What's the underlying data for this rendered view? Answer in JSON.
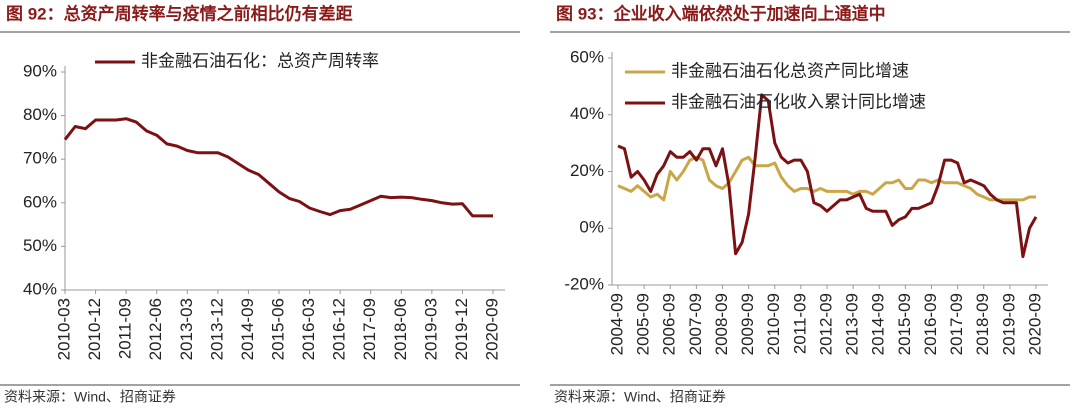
{
  "chart_data": [
    {
      "type": "line",
      "title": "图 92：总资产周转率与疫情之前相比仍有差距",
      "source": "资料来源：Wind、招商证券",
      "categories": [
        "2010-03",
        null,
        null,
        "2010-12",
        null,
        null,
        "2011-09",
        null,
        null,
        "2012-06",
        null,
        null,
        "2013-03",
        null,
        null,
        "2013-12",
        null,
        null,
        "2014-09",
        null,
        null,
        "2015-06",
        null,
        null,
        "2016-03",
        null,
        null,
        "2016-12",
        null,
        null,
        "2017-09",
        null,
        null,
        "2018-06",
        null,
        null,
        "2019-03",
        null,
        null,
        "2019-12",
        null,
        null,
        "2020-09"
      ],
      "series": [
        {
          "name": "非金融石油石化：总资产周转率",
          "color": "#7b1113",
          "values": [
            74.5,
            77.5,
            77,
            79,
            79,
            79,
            79.3,
            78.5,
            76.5,
            75.5,
            73.5,
            73,
            72,
            71.5,
            71.5,
            71.5,
            70.5,
            69,
            67.5,
            66.5,
            64.5,
            62.5,
            61,
            60.3,
            58.8,
            58,
            57.3,
            58.2,
            58.5,
            59.5,
            60.5,
            61.5,
            61.2,
            61.3,
            61.2,
            60.8,
            60.5,
            60,
            59.7,
            59.8,
            57,
            57,
            57
          ]
        }
      ],
      "ylim": [
        40,
        90
      ],
      "yticks": [
        {
          "value": 40,
          "label": "40%"
        },
        {
          "value": 50,
          "label": "50%"
        },
        {
          "value": 60,
          "label": "60%"
        },
        {
          "value": 70,
          "label": "70%"
        },
        {
          "value": 80,
          "label": "80%"
        },
        {
          "value": 90,
          "label": "90%"
        }
      ],
      "legend": "upper left"
    },
    {
      "type": "line",
      "title": "图 93：企业收入端依然处于加速向上通道中",
      "source": "资料来源：Wind、招商证券",
      "categories": [
        "2004-09",
        null,
        null,
        null,
        "2005-09",
        null,
        null,
        null,
        "2006-09",
        null,
        null,
        null,
        "2007-09",
        null,
        null,
        null,
        "2008-09",
        null,
        null,
        null,
        "2009-09",
        null,
        null,
        null,
        "2010-09",
        null,
        null,
        null,
        "2011-09",
        null,
        null,
        null,
        "2012-09",
        null,
        null,
        null,
        "2013-09",
        null,
        null,
        null,
        "2014-09",
        null,
        null,
        null,
        "2015-09",
        null,
        null,
        null,
        "2016-09",
        null,
        null,
        null,
        "2017-09",
        null,
        null,
        null,
        "2018-09",
        null,
        null,
        null,
        "2019-09",
        null,
        null,
        null,
        "2020-09"
      ],
      "series": [
        {
          "name": "非金融石油石化总资产同比增速",
          "color": "#c9a648",
          "values": [
            15,
            14,
            13,
            15,
            13,
            11,
            12,
            10,
            20,
            17,
            20,
            24,
            25,
            24,
            17,
            15,
            14,
            16,
            20,
            24,
            25,
            22,
            22,
            22,
            23,
            18,
            15,
            13,
            14,
            14,
            13,
            14,
            13,
            13,
            13,
            13,
            12,
            13,
            13,
            12,
            14,
            16,
            16,
            17,
            14,
            14,
            17,
            17,
            16,
            17,
            16,
            16,
            16,
            15,
            14,
            12,
            11,
            10,
            10,
            10,
            10,
            10,
            10,
            11,
            11
          ]
        },
        {
          "name": "非金融石油石化收入累计同比增速",
          "color": "#7b1113",
          "values": [
            29,
            28,
            18,
            20,
            17,
            13,
            19,
            22,
            27,
            25,
            25,
            27,
            24,
            28,
            28,
            22,
            28,
            15,
            -9,
            -5,
            5,
            25,
            47,
            45,
            30,
            25,
            23,
            24,
            24,
            20,
            9,
            8,
            6,
            8,
            10,
            10,
            11,
            12,
            7,
            6,
            6,
            6,
            1,
            3,
            4,
            7,
            7,
            8,
            9,
            15,
            24,
            24,
            23,
            16,
            17,
            16,
            15,
            12,
            10,
            9,
            9,
            9,
            -10,
            0,
            4
          ]
        }
      ],
      "ylim": [
        -20,
        60
      ],
      "yticks": [
        {
          "value": -20,
          "label": "-20%"
        },
        {
          "value": 0,
          "label": "0%"
        },
        {
          "value": 20,
          "label": "20%"
        },
        {
          "value": 40,
          "label": "40%"
        },
        {
          "value": 60,
          "label": "60%"
        }
      ],
      "legend": "upper left"
    }
  ]
}
